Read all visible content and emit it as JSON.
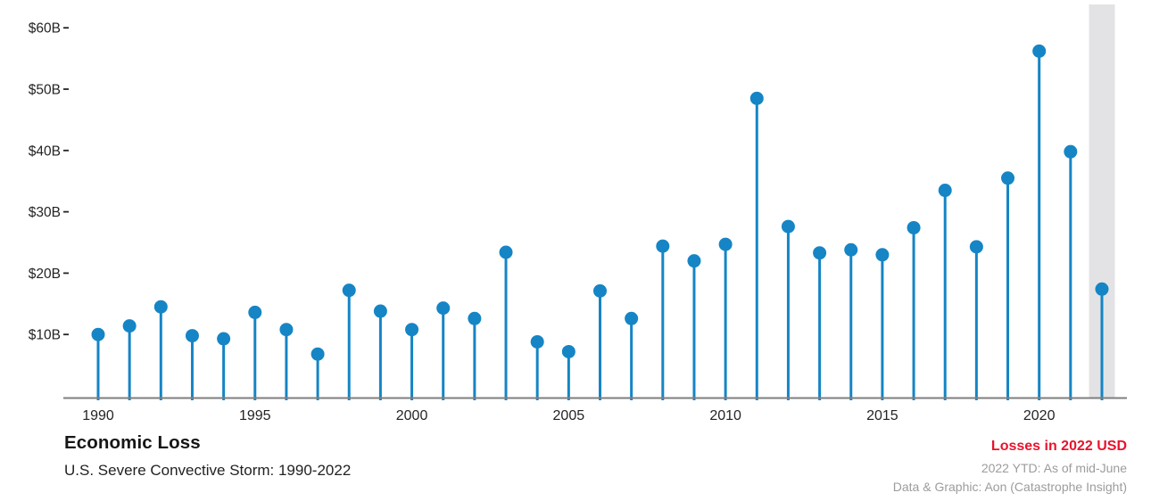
{
  "chart_data": {
    "type": "scatter",
    "variant": "lollipop-stem",
    "title": "Economic Loss",
    "subtitle": "U.S. Severe Convective Storm: 1990-2022",
    "unit": "USD billions (2022 USD)",
    "years": [
      1990,
      1991,
      1992,
      1993,
      1994,
      1995,
      1996,
      1997,
      1998,
      1999,
      2000,
      2001,
      2002,
      2003,
      2004,
      2005,
      2006,
      2007,
      2008,
      2009,
      2010,
      2011,
      2012,
      2013,
      2014,
      2015,
      2016,
      2017,
      2018,
      2019,
      2020,
      2021,
      2022
    ],
    "values": [
      10.0,
      11.4,
      14.5,
      9.8,
      9.3,
      13.6,
      10.8,
      6.8,
      17.2,
      13.8,
      10.8,
      14.3,
      12.6,
      23.4,
      8.8,
      7.2,
      17.1,
      12.6,
      24.4,
      22.0,
      24.7,
      48.5,
      27.6,
      23.3,
      23.8,
      23.0,
      27.4,
      33.5,
      24.3,
      35.5,
      56.2,
      39.8,
      17.4
    ],
    "y_ticks": [
      10,
      20,
      30,
      40,
      50,
      60
    ],
    "y_tick_labels": [
      "$10B",
      "$20B",
      "$30B",
      "$40B",
      "$50B",
      "$60B"
    ],
    "x_tick_years": [
      1990,
      1995,
      2000,
      2005,
      2010,
      2015,
      2020
    ],
    "ylim": [
      0,
      63
    ],
    "grid": false,
    "legend": false,
    "highlight": {
      "year": 2022,
      "note": "2022 YTD"
    }
  },
  "notes": {
    "currency": "Losses in 2022 USD",
    "ytd": "2022 YTD: As of mid-June",
    "credit": "Data & Graphic: Aon (Catastrophe Insight)"
  },
  "colors": {
    "dot_blue": "#1585c5",
    "axis_gray": "#7e7e7e",
    "highlight_band": "#e3e3e5",
    "note_red": "#e9132c",
    "muted_text": "#9c9c9c",
    "dark_text": "#242424"
  }
}
